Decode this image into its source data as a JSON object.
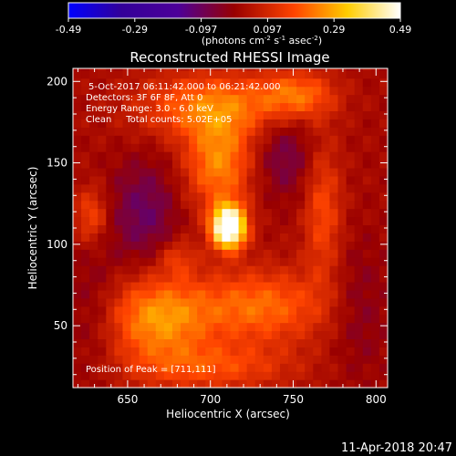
{
  "chart_data": {
    "type": "heatmap",
    "title": "Reconstructed RHESSI Image",
    "xlabel": "Heliocentric X (arcsec)",
    "ylabel": "Heliocentric Y (arcsec)",
    "xlim": [
      617,
      807
    ],
    "ylim": [
      12,
      208
    ],
    "x_ticks": [
      650,
      700,
      750,
      800
    ],
    "y_ticks": [
      50,
      100,
      150,
      200
    ],
    "colorbar": {
      "min": -0.49,
      "max": 0.49,
      "ticks": [
        "-0.49",
        "-0.29",
        "-0.097",
        "0.097",
        "0.29",
        "0.49"
      ],
      "unit_label": "(photons cm",
      "unit_sup1": "-2",
      "unit_mid": " s",
      "unit_sup2": "-1",
      "unit_mid2": " asec",
      "unit_sup3": "-2",
      "unit_end": ")",
      "colors": [
        "#0000ff",
        "#330099",
        "#4d0099",
        "#990000",
        "#ff4400",
        "#ffcc00",
        "#ffffff"
      ]
    },
    "annotations": [
      "5-Oct-2017 06:11:42.000 to 06:21:42.000",
      "Detectors: 3F 6F 8F, Att 0",
      "Energy Range: 3.0 - 6.0 keV",
      "Clean     Total counts: 5.02E+05"
    ],
    "peak_label": "Position of Peak = [711,111]",
    "peak": {
      "x": 711,
      "y": 111,
      "value": 0.49
    },
    "sources": [
      {
        "x": 711,
        "y": 111,
        "sx": 7,
        "sy": 9,
        "amp": 0.62
      },
      {
        "x": 705,
        "y": 150,
        "sx": 14,
        "sy": 20,
        "amp": 0.22
      },
      {
        "x": 700,
        "y": 185,
        "sx": 30,
        "sy": 14,
        "amp": 0.2
      },
      {
        "x": 752,
        "y": 192,
        "sx": 16,
        "sy": 10,
        "amp": 0.18
      },
      {
        "x": 768,
        "y": 120,
        "sx": 8,
        "sy": 30,
        "amp": 0.14
      },
      {
        "x": 668,
        "y": 55,
        "sx": 22,
        "sy": 18,
        "amp": 0.24
      },
      {
        "x": 730,
        "y": 62,
        "sx": 28,
        "sy": 16,
        "amp": 0.19
      },
      {
        "x": 700,
        "y": 25,
        "sx": 35,
        "sy": 10,
        "amp": 0.14
      },
      {
        "x": 628,
        "y": 118,
        "sx": 7,
        "sy": 12,
        "amp": 0.14
      },
      {
        "x": 680,
        "y": 92,
        "sx": 8,
        "sy": 8,
        "amp": 0.1
      },
      {
        "x": 660,
        "y": 120,
        "sx": 14,
        "sy": 22,
        "amp": -0.12
      },
      {
        "x": 745,
        "y": 155,
        "sx": 12,
        "sy": 18,
        "amp": -0.1
      },
      {
        "x": 630,
        "y": 60,
        "sx": 12,
        "sy": 30,
        "amp": -0.06
      },
      {
        "x": 790,
        "y": 60,
        "sx": 12,
        "sy": 30,
        "amp": -0.06
      }
    ],
    "background": 0.02
  },
  "footer": {
    "date": "11-Apr-2018 20:47"
  }
}
